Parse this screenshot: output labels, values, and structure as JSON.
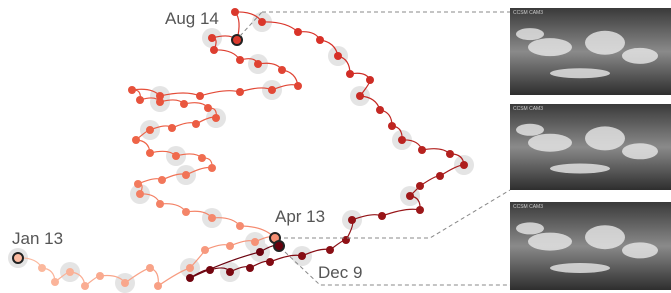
{
  "annotations": [
    {
      "label": "Aug 14"
    },
    {
      "label": "Jan 13"
    },
    {
      "label": "Apr 13"
    },
    {
      "label": "Dec 9"
    }
  ],
  "thumbnails": [
    {
      "caption": "CCSM CAM3"
    },
    {
      "caption": "CCSM CAM3"
    },
    {
      "caption": "CCSM CAM3"
    }
  ]
}
